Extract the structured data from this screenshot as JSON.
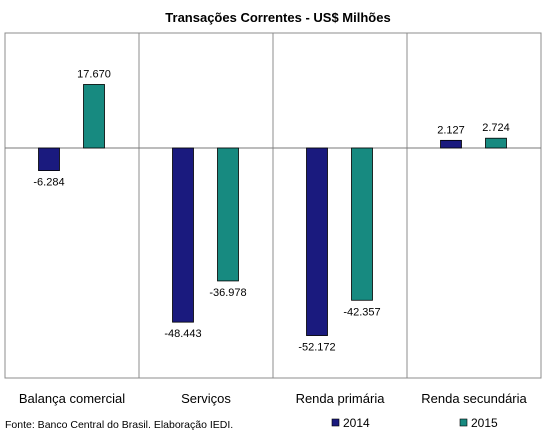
{
  "chart_data": {
    "type": "bar",
    "title": "Transações Correntes  - US$ Milhões",
    "categories": [
      "Balança comercial",
      "Serviços",
      "Renda primária",
      "Renda secundária"
    ],
    "series": [
      {
        "name": "2014",
        "color": "#1a1a7e",
        "values": [
          -6284,
          -48443,
          -52172,
          2127
        ],
        "labels": [
          "-6.284",
          "-48.443",
          "-52.172",
          "2.127"
        ]
      },
      {
        "name": "2015",
        "color": "#178a80",
        "values": [
          17670,
          -36978,
          -42357,
          2724
        ],
        "labels": [
          "17.670",
          "-36.978",
          "-42.357",
          "2.724"
        ]
      }
    ],
    "ylim": [
      -60000,
      30000
    ],
    "xlabel": "",
    "ylabel": "",
    "grid": false,
    "legend_position": "bottom-right",
    "source": "Fonte: Banco Central do Brasil. Elaboração IEDI."
  }
}
